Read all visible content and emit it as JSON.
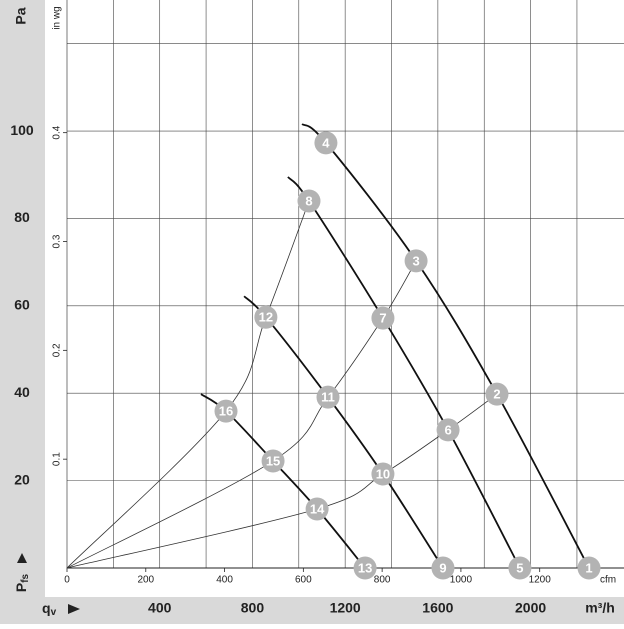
{
  "chart_data": {
    "type": "fan-curve",
    "y_label": "Pa",
    "y2_label": "in wg",
    "x_label": "m³/h",
    "x2_label": "cfm",
    "pressure_symbol": {
      "main": "P",
      "sub": "fs"
    },
    "flow_symbol": {
      "main": "q",
      "sub": "v"
    },
    "xlim": [
      0,
      2403
    ],
    "xticks": [
      {
        "value": 200,
        "label": null
      },
      400,
      {
        "value": 600,
        "label": null
      },
      800,
      {
        "value": 1000,
        "label": null
      },
      1200,
      {
        "value": 1400,
        "label": null
      },
      1600,
      {
        "value": 1800,
        "label": null
      },
      2000,
      {
        "value": 2200,
        "label": null
      }
    ],
    "x2lim": [
      0,
      1414
    ],
    "x2ticks": [
      0,
      200,
      400,
      600,
      800,
      1000,
      1200
    ],
    "ylim": [
      0,
      130
    ],
    "yticks": [
      20,
      40,
      60,
      80,
      100,
      {
        "value": 120,
        "label": null
      }
    ],
    "y2lim": [
      0,
      0.5219
    ],
    "y2ticks": [
      0.1,
      0.2,
      0.3,
      0.4
    ],
    "grid": true,
    "curves": [
      {
        "x": [
          1014,
          1117,
          1506,
          1855,
          2252
        ],
        "values": [
          101.6,
          97.3,
          70.3,
          39.8,
          0
        ],
        "labels": [
          null,
          "4",
          "3",
          "2",
          "1"
        ]
      },
      {
        "x": [
          953,
          1044,
          1363,
          1644,
          1954
        ],
        "values": [
          89.5,
          84,
          57.2,
          31.6,
          0
        ],
        "labels": [
          null,
          "8",
          "7",
          "6",
          "5"
        ]
      },
      {
        "x": [
          764,
          858,
          1126,
          1363,
          1622
        ],
        "values": [
          62.2,
          57.4,
          39.1,
          21.5,
          0
        ],
        "labels": [
          null,
          "12",
          "11",
          "10",
          "9"
        ]
      },
      {
        "x": [
          578,
          686,
          889,
          1079,
          1286
        ],
        "values": [
          39.8,
          35.9,
          24.5,
          13.5,
          0
        ],
        "labels": [
          null,
          "16",
          "15",
          "14",
          "13"
        ]
      }
    ],
    "system_curves": [
      {
        "x": [
          0,
          686,
          858,
          1044
        ],
        "values": [
          0,
          35.9,
          57.4,
          84
        ]
      },
      {
        "x": [
          0,
          889,
          1126,
          1363,
          1506
        ],
        "values": [
          0,
          24.5,
          39.1,
          57.2,
          70.3
        ]
      },
      {
        "x": [
          0,
          1079,
          1363,
          1644,
          1855
        ],
        "values": [
          0,
          13.5,
          21.5,
          31.6,
          39.8
        ]
      }
    ]
  }
}
